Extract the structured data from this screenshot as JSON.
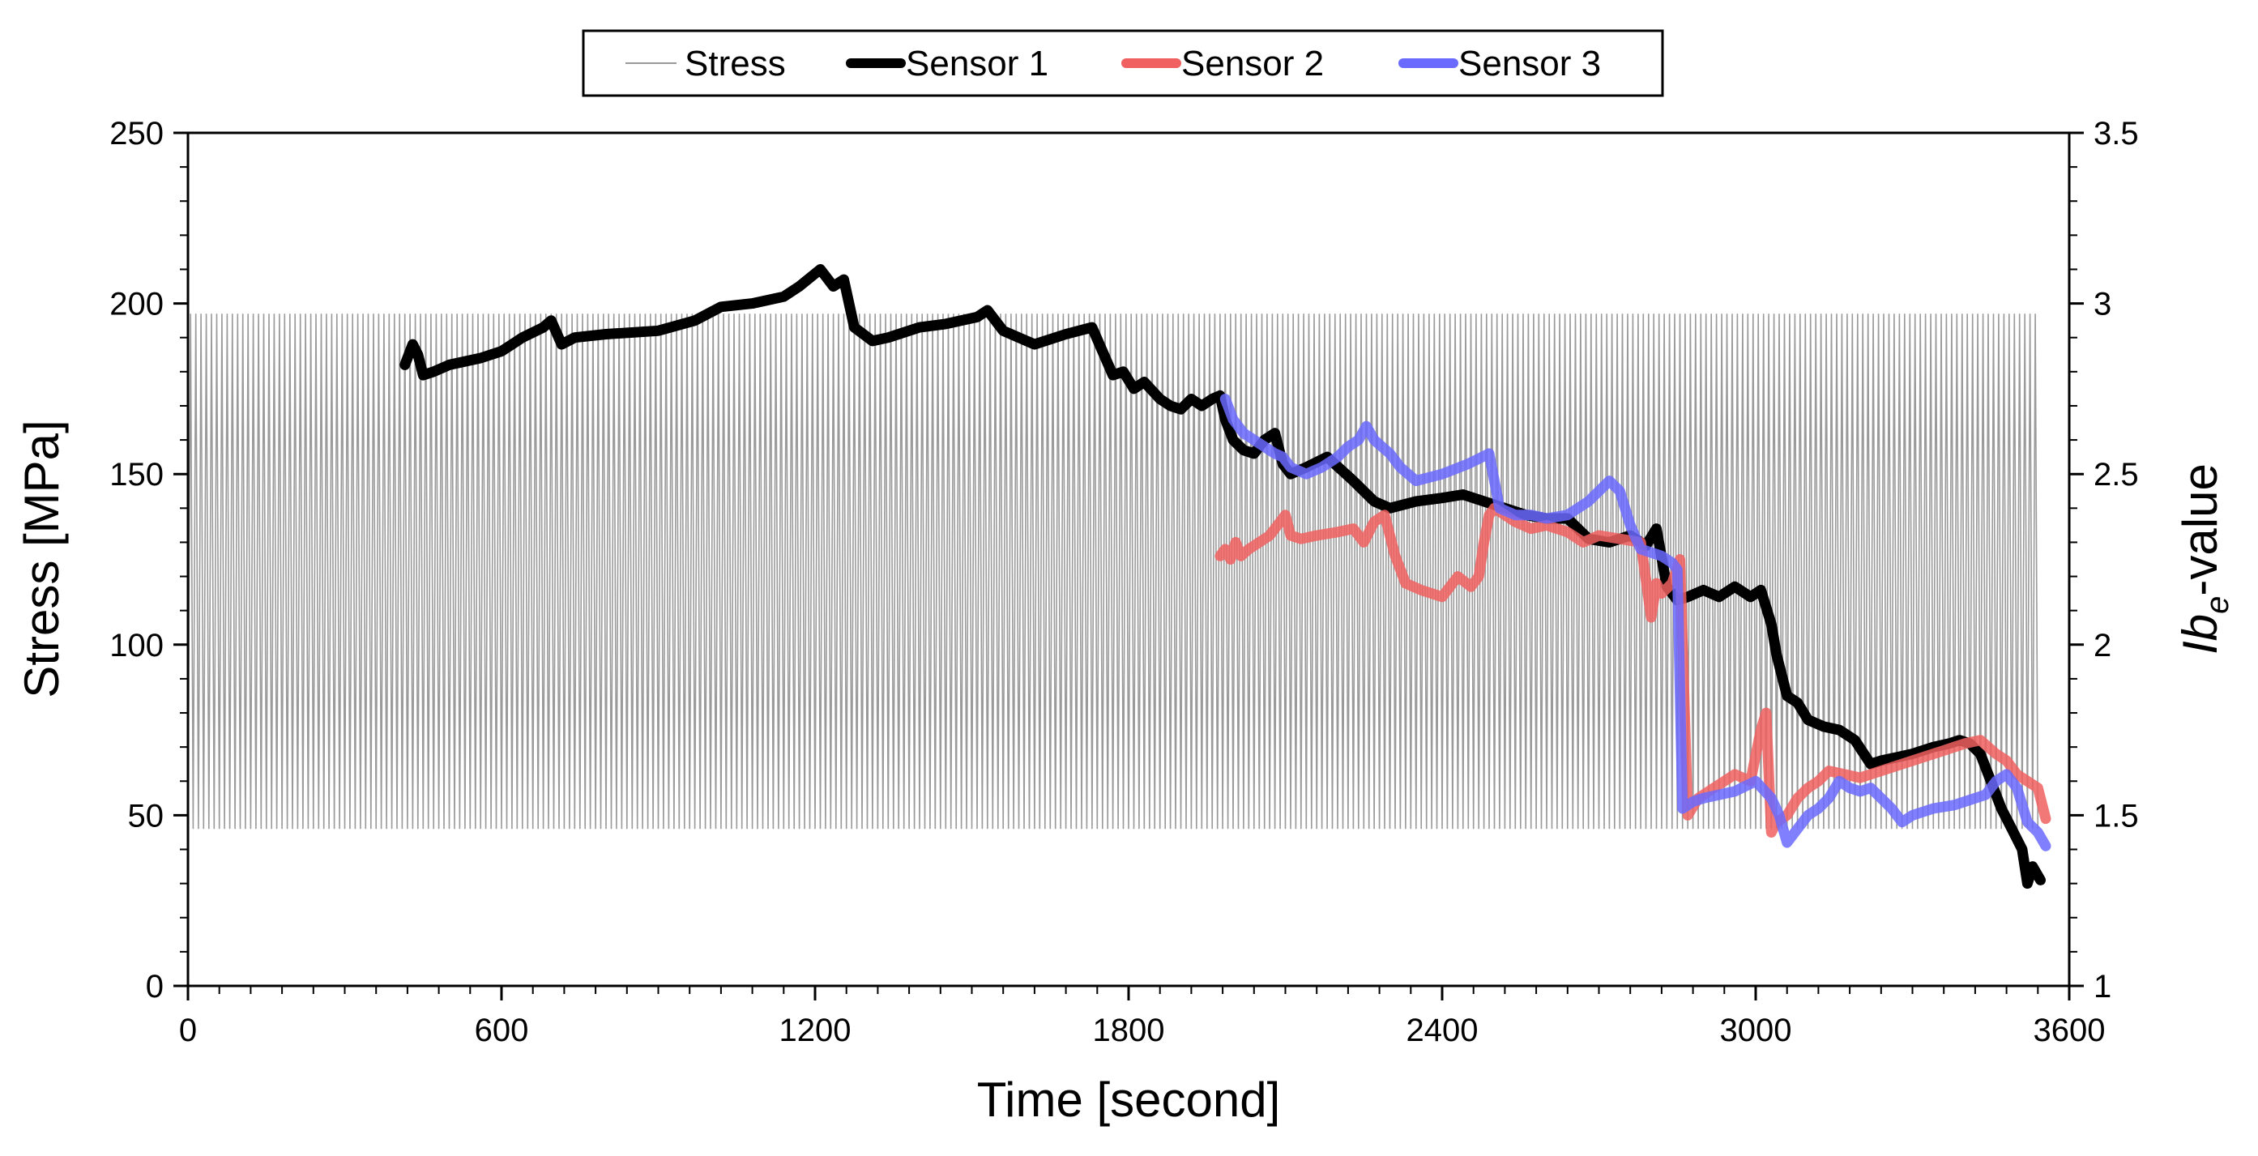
{
  "chart_data": {
    "type": "line",
    "title": "",
    "xlabel": "Time [second]",
    "ylabel_left": "Stress [MPa]",
    "ylabel_right_main": "Ib",
    "ylabel_right_sub": "e",
    "ylabel_right_suffix": "-value",
    "xlim": [
      0,
      3600
    ],
    "ylim_left": [
      0,
      250
    ],
    "ylim_right": [
      1,
      3.5
    ],
    "x_ticks": [
      "0",
      "600",
      "1200",
      "1800",
      "2400",
      "3000",
      "3600"
    ],
    "y_left_ticks": [
      "0",
      "50",
      "100",
      "150",
      "200",
      "250"
    ],
    "y_right_ticks": [
      "1",
      "1.5",
      "2",
      "2.5",
      "3",
      "3.5"
    ],
    "grid": false,
    "legend_position": "top-center",
    "stress_signal": {
      "name": "Stress",
      "axis": "left",
      "color": "#9a9a9a",
      "min": 46,
      "max": 197,
      "period_s": 10,
      "x_start": 0,
      "x_end": 3540
    },
    "series": [
      {
        "name": "Sensor 1",
        "axis": "right",
        "color": "#000000",
        "x": [
          415,
          430,
          440,
          450,
          470,
          500,
          560,
          600,
          640,
          680,
          695,
          715,
          740,
          800,
          900,
          970,
          1020,
          1080,
          1140,
          1170,
          1210,
          1235,
          1255,
          1275,
          1310,
          1340,
          1400,
          1450,
          1510,
          1530,
          1560,
          1620,
          1680,
          1730,
          1770,
          1790,
          1810,
          1830,
          1860,
          1880,
          1900,
          1920,
          1940,
          1960,
          1975,
          1985,
          2000,
          2020,
          2040,
          2060,
          2080,
          2095,
          2110,
          2140,
          2180,
          2230,
          2270,
          2300,
          2350,
          2400,
          2440,
          2480,
          2520,
          2560,
          2600,
          2640,
          2680,
          2720,
          2760,
          2790,
          2810,
          2830,
          2850,
          2870,
          2900,
          2930,
          2960,
          2990,
          3010,
          3030,
          3040,
          3060,
          3080,
          3100,
          3130,
          3160,
          3190,
          3220,
          3240,
          3270,
          3300,
          3340,
          3370,
          3390,
          3410,
          3430,
          3450,
          3470,
          3490,
          3510,
          3520,
          3530,
          3545
        ],
        "values": [
          2.82,
          2.88,
          2.85,
          2.79,
          2.8,
          2.82,
          2.84,
          2.86,
          2.9,
          2.93,
          2.95,
          2.88,
          2.9,
          2.91,
          2.92,
          2.95,
          2.99,
          3.0,
          3.02,
          3.05,
          3.1,
          3.05,
          3.07,
          2.93,
          2.89,
          2.9,
          2.93,
          2.94,
          2.96,
          2.98,
          2.92,
          2.88,
          2.91,
          2.93,
          2.79,
          2.8,
          2.75,
          2.77,
          2.72,
          2.7,
          2.69,
          2.72,
          2.7,
          2.72,
          2.73,
          2.66,
          2.6,
          2.57,
          2.56,
          2.6,
          2.62,
          2.53,
          2.5,
          2.52,
          2.55,
          2.48,
          2.42,
          2.4,
          2.42,
          2.43,
          2.44,
          2.42,
          2.4,
          2.38,
          2.37,
          2.37,
          2.31,
          2.3,
          2.32,
          2.29,
          2.34,
          2.17,
          2.13,
          2.14,
          2.16,
          2.14,
          2.17,
          2.14,
          2.16,
          2.06,
          1.97,
          1.85,
          1.83,
          1.78,
          1.76,
          1.75,
          1.72,
          1.65,
          1.66,
          1.67,
          1.68,
          1.7,
          1.71,
          1.72,
          1.71,
          1.68,
          1.6,
          1.52,
          1.46,
          1.4,
          1.3,
          1.35,
          1.31
        ]
      },
      {
        "name": "Sensor 2",
        "axis": "right",
        "color": "#f06060",
        "x": [
          1975,
          1985,
          1995,
          2005,
          2015,
          2030,
          2050,
          2070,
          2085,
          2100,
          2110,
          2130,
          2160,
          2200,
          2230,
          2250,
          2270,
          2290,
          2310,
          2330,
          2360,
          2400,
          2430,
          2455,
          2470,
          2480,
          2490,
          2500,
          2520,
          2540,
          2570,
          2600,
          2640,
          2670,
          2700,
          2740,
          2780,
          2800,
          2810,
          2820,
          2840,
          2855,
          2870,
          2890,
          2920,
          2960,
          2990,
          3010,
          3020,
          3030,
          3040,
          3060,
          3080,
          3100,
          3120,
          3140,
          3170,
          3200,
          3240,
          3280,
          3320,
          3360,
          3400,
          3430,
          3460,
          3480,
          3500,
          3520,
          3540,
          3555
        ],
        "values": [
          2.26,
          2.28,
          2.25,
          2.3,
          2.26,
          2.28,
          2.3,
          2.32,
          2.35,
          2.38,
          2.32,
          2.31,
          2.32,
          2.33,
          2.34,
          2.3,
          2.36,
          2.38,
          2.26,
          2.18,
          2.16,
          2.14,
          2.2,
          2.17,
          2.2,
          2.3,
          2.38,
          2.4,
          2.38,
          2.36,
          2.34,
          2.35,
          2.33,
          2.3,
          2.32,
          2.31,
          2.3,
          2.08,
          2.18,
          2.15,
          2.18,
          2.25,
          1.5,
          1.55,
          1.58,
          1.62,
          1.6,
          1.75,
          1.8,
          1.45,
          1.48,
          1.5,
          1.55,
          1.58,
          1.6,
          1.63,
          1.62,
          1.61,
          1.63,
          1.65,
          1.67,
          1.69,
          1.71,
          1.72,
          1.68,
          1.66,
          1.62,
          1.6,
          1.58,
          1.49
        ]
      },
      {
        "name": "Sensor 3",
        "axis": "right",
        "color": "#6a6aff",
        "x": [
          1985,
          2000,
          2020,
          2040,
          2060,
          2080,
          2095,
          2110,
          2140,
          2170,
          2200,
          2220,
          2240,
          2255,
          2270,
          2300,
          2320,
          2350,
          2400,
          2450,
          2490,
          2510,
          2540,
          2570,
          2600,
          2640,
          2680,
          2720,
          2740,
          2760,
          2780,
          2800,
          2820,
          2840,
          2850,
          2860,
          2870,
          2880,
          2900,
          2930,
          2960,
          3000,
          3030,
          3045,
          3060,
          3080,
          3100,
          3120,
          3140,
          3160,
          3180,
          3200,
          3220,
          3240,
          3260,
          3280,
          3300,
          3340,
          3380,
          3420,
          3440,
          3460,
          3480,
          3500,
          3520,
          3540,
          3555
        ],
        "values": [
          2.72,
          2.66,
          2.62,
          2.6,
          2.58,
          2.56,
          2.55,
          2.52,
          2.5,
          2.52,
          2.55,
          2.58,
          2.6,
          2.64,
          2.6,
          2.56,
          2.52,
          2.48,
          2.5,
          2.53,
          2.56,
          2.4,
          2.38,
          2.38,
          2.37,
          2.38,
          2.42,
          2.48,
          2.45,
          2.35,
          2.28,
          2.27,
          2.26,
          2.24,
          2.22,
          1.52,
          1.53,
          1.54,
          1.55,
          1.56,
          1.57,
          1.6,
          1.55,
          1.5,
          1.42,
          1.46,
          1.5,
          1.52,
          1.55,
          1.6,
          1.58,
          1.57,
          1.58,
          1.55,
          1.52,
          1.48,
          1.5,
          1.52,
          1.53,
          1.55,
          1.56,
          1.6,
          1.62,
          1.58,
          1.48,
          1.45,
          1.41
        ]
      }
    ]
  }
}
